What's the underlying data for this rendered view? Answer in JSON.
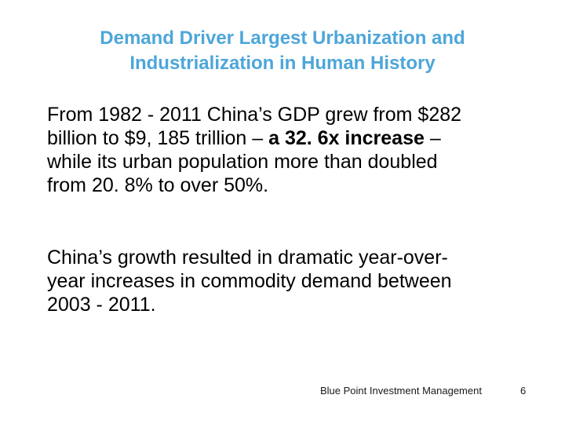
{
  "slide": {
    "title_lines": [
      "Demand Driver Largest Urbanization and",
      "Industrialization in Human History"
    ],
    "paragraph1": {
      "line1": "From 1982 - 2011 China’s GDP grew from $282",
      "line2_pre": "billion to $9, 185 trillion – ",
      "line2_bold": "a 32. 6x increase",
      "line2_post": " –",
      "line3": "while its urban population more than doubled",
      "line4": "from 20. 8% to over 50%."
    },
    "paragraph2": {
      "line1": "China’s growth resulted in dramatic year-over-",
      "line2": "year increases in commodity demand between",
      "line3": "2003 - 2011."
    },
    "footer": {
      "company": "Blue Point Investment Management",
      "page_number": "6"
    },
    "colors": {
      "title": "#4da6d9",
      "body": "#000000",
      "background": "#ffffff"
    }
  }
}
